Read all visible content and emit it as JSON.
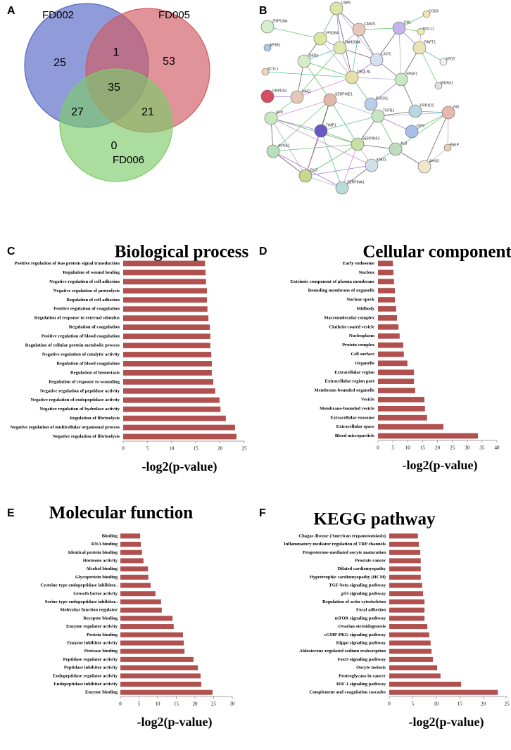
{
  "panel_labels": [
    "A",
    "B",
    "C",
    "D",
    "E",
    "F"
  ],
  "network": {
    "nodes": [
      "USP6",
      "COG6",
      "ZNF518A",
      "CAND1",
      "DR1",
      "NOL11",
      "VPS26A",
      "AP3B1",
      "FAM208A",
      "RNFT1",
      "XPOT",
      "LIN7C",
      "SBDS",
      "UBQLN1",
      "SRSF1",
      "SCYL1",
      "WDR41",
      "GNPDA2",
      "NAE1",
      "SERPINE1",
      "ROCK1",
      "PPP1CC",
      "INS",
      "APP",
      "TGFB1",
      "TIMP1",
      "IGF3",
      "PAEP",
      "APOA1",
      "SERPINF2",
      "ALB",
      "KNG1",
      "AHSG",
      "PLG",
      "SERPINA1"
    ]
  },
  "chart_data": [
    {
      "type": "venn",
      "sets": [
        {
          "name": "FD002",
          "color": "#5566c4"
        },
        {
          "name": "FD005",
          "color": "#cf5a62"
        },
        {
          "name": "FD006",
          "color": "#7ccb6a"
        }
      ],
      "values": [
        25,
        1,
        53,
        35,
        27,
        21,
        0
      ]
    },
    {
      "type": "bar",
      "orientation": "horizontal",
      "title": "Biological process",
      "x_label": "-log2(p-value)",
      "color": "#b0504f",
      "categories": [
        "Positive regulation of Ras protein signal transduction",
        "Regulation of wound healing",
        "Negative regulation of cell adhesion",
        "Negative regulation of proteolysis",
        "Regulation of cell adhesion",
        "Positive regulation of coagulation",
        "Regulation of response to external stimulus",
        "Regulation of coagulation",
        "Positive regulation of blood coagulation",
        "Regulation of cellular protein metabolic process",
        "Negative regulation of catalytic activity",
        "Regulation of blood coagulation",
        "Regulation of hemostasis",
        "Regulation of response to wounding",
        "Negative regulation of peptidase activity",
        "Negative regulation of endopeptidase activity",
        "Negative regulation of hydrolase activity",
        "Regulation of fibrinolysis",
        "Negative regulation of multicellular organismal process",
        "Negative regulation of fibrinolysis"
      ],
      "values": [
        16.9,
        17.0,
        17.1,
        17.3,
        17.3,
        17.4,
        17.6,
        17.9,
        18.0,
        18.0,
        18.2,
        18.3,
        18.3,
        18.6,
        19.0,
        19.9,
        20.1,
        21.2,
        23.1,
        23.4
      ],
      "xlim": [
        0,
        25
      ],
      "xticks": [
        0,
        5,
        10,
        15,
        20,
        25
      ]
    },
    {
      "type": "bar",
      "orientation": "horizontal",
      "title": "Cellular component",
      "x_label": "-log2(p-value)",
      "color": "#b0504f",
      "categories": [
        "Early endosome",
        "Nucleus",
        "Extrinsic component of plasma membrane",
        "Bounding membrane of organelle",
        "Nuclear speck",
        "Midbody",
        "Macromolecular complex",
        "Clathrin-coated vesicle",
        "Nucleoplasm",
        "Protein complex",
        "Cell surface",
        "Organelle",
        "Extracellular region",
        "Extracellular region part",
        "Membrane-bounded organelle",
        "Vesicle",
        "Membrane-bounded vesicle",
        "Extracellular exosome",
        "Extracellular space",
        "Blood microparticle"
      ],
      "values": [
        5.0,
        5.2,
        5.4,
        5.7,
        5.7,
        6.1,
        6.4,
        6.9,
        7.3,
        8.5,
        8.7,
        9.9,
        12.1,
        12.1,
        12.5,
        15.6,
        15.8,
        16.5,
        22.0,
        33.6
      ],
      "xlim": [
        0,
        40
      ],
      "xticks": [
        0,
        5,
        10,
        15,
        20,
        25,
        30,
        35,
        40
      ]
    },
    {
      "type": "bar",
      "orientation": "horizontal",
      "title": "Molecular function",
      "x_label": "-log2(p-value)",
      "color": "#b0504f",
      "categories": [
        "Binding",
        "RNA binding",
        "Identical protein binding",
        "Hormone activity",
        "Alcohol binding",
        "Glycoprotein binding",
        "Cysteine-type endopeptidase inhibitor..",
        "Growth factor activity",
        "Serine-type endopeptidase inhibitor..",
        "Molecular function regulator",
        "Receptor binding",
        "Enzyme regulator activity",
        "Protein binding",
        "Enzyme inhibitor activity",
        "Protease binding",
        "Peptidase regulator activity",
        "Peptidase inhibitor activity",
        "Endopeptidase regulator activity",
        "Endopeptidase inhibitor activity",
        "Enzyme binding"
      ],
      "values": [
        5.3,
        5.5,
        5.8,
        6.2,
        7.4,
        7.5,
        8.1,
        9.4,
        10.9,
        11.1,
        14.0,
        14.3,
        16.8,
        17.0,
        17.2,
        19.6,
        20.8,
        21.5,
        21.7,
        24.7
      ],
      "xlim": [
        0,
        30
      ],
      "xticks": [
        0,
        5,
        10,
        15,
        20,
        25,
        30
      ]
    },
    {
      "type": "bar",
      "orientation": "horizontal",
      "title": "KEGG pathway",
      "x_label": "-log2(p-value)",
      "color": "#b0504f",
      "categories": [
        "Chagas disease (American trypanosomiasis)",
        "Inflammatory mediator regulation of TRP channels",
        "Progesterone-mediated oocyte maturation",
        "Prostate cancer",
        "Dilated cardiomyopathy",
        "Hypertrophic cardiomyopathy (HCM)",
        "TGF-beta signaling pathway",
        "p53 signaling pathway",
        "Regulation of actin cytoskeleton",
        "Focal adhesion",
        "mTOR signaling pathway",
        "Ovarian steroidogenesis",
        "cGMP-PKG signaling pathway",
        "Hippo signaling pathway",
        "Aldosterone-regulated sodium reabsorption",
        "FoxO signaling pathway",
        "Oocyte meiosis",
        "Proteoglycans in cancer",
        "HIF-1 signaling pathway",
        "Complement and coagulation cascades"
      ],
      "values": [
        6.1,
        6.3,
        6.6,
        6.7,
        6.7,
        6.7,
        7.0,
        7.2,
        7.5,
        7.5,
        7.5,
        8.1,
        8.5,
        8.8,
        9.0,
        9.3,
        10.2,
        10.9,
        15.3,
        23.1
      ],
      "xlim": [
        0,
        25
      ],
      "xticks": [
        0,
        5,
        10,
        15,
        20,
        25
      ]
    }
  ]
}
